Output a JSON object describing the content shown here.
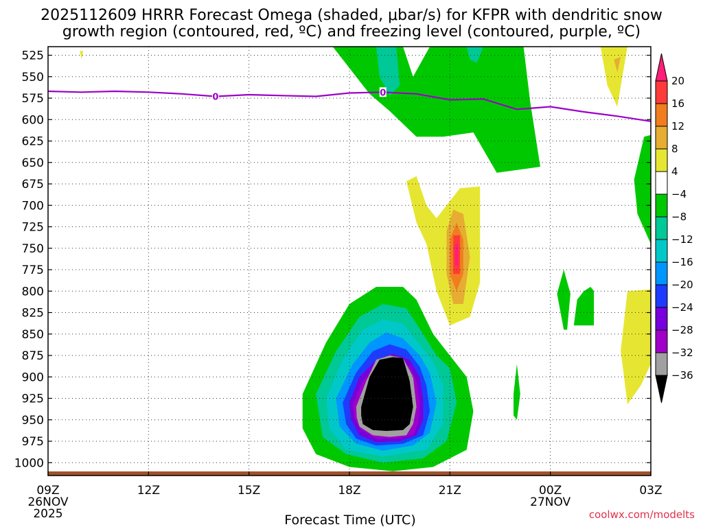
{
  "chart_data": {
    "type": "contour",
    "title_line1": "2025112609 HRRR Forecast Omega (shaded, μbar/s) for KFPR with dendritic snow",
    "title_line2": "growth region (contoured, red, ºC) and freezing level (contoured, purple, ºC)",
    "xlabel": "Forecast Time (UTC)",
    "credit": "coolwx.com/modelts",
    "xlim": [
      0,
      18
    ],
    "ylim": [
      515,
      1015
    ],
    "x_ticks": [
      {
        "x": 0,
        "label": "09Z",
        "sub1": "26NOV",
        "sub2": "2025"
      },
      {
        "x": 3,
        "label": "12Z",
        "sub1": "",
        "sub2": ""
      },
      {
        "x": 6,
        "label": "15Z",
        "sub1": "",
        "sub2": ""
      },
      {
        "x": 9,
        "label": "18Z",
        "sub1": "",
        "sub2": ""
      },
      {
        "x": 12,
        "label": "21Z",
        "sub1": "",
        "sub2": ""
      },
      {
        "x": 15,
        "label": "00Z",
        "sub1": "27NOV",
        "sub2": ""
      },
      {
        "x": 18,
        "label": "03Z",
        "sub1": "",
        "sub2": ""
      }
    ],
    "y_ticks": [
      525,
      550,
      575,
      600,
      625,
      650,
      675,
      700,
      725,
      750,
      775,
      800,
      825,
      850,
      875,
      900,
      925,
      950,
      975,
      1000
    ],
    "colorbar": {
      "levels": [
        {
          "value": 20,
          "label": "20",
          "color": "#ff1e78"
        },
        {
          "value": 16,
          "label": "16",
          "color": "#ff3a3a"
        },
        {
          "value": 12,
          "label": "12",
          "color": "#f07d1e"
        },
        {
          "value": 8,
          "label": "8",
          "color": "#e6ad32"
        },
        {
          "value": 4,
          "label": "4",
          "color": "#e6e632"
        },
        {
          "value": -4,
          "label": "−4",
          "color": "#ffffff"
        },
        {
          "value": -8,
          "label": "−8",
          "color": "#00c800"
        },
        {
          "value": -12,
          "label": "−12",
          "color": "#00c896"
        },
        {
          "value": -16,
          "label": "−16",
          "color": "#00c8c8"
        },
        {
          "value": -20,
          "label": "−20",
          "color": "#0096ff"
        },
        {
          "value": -24,
          "label": "−24",
          "color": "#1e3cff"
        },
        {
          "value": -28,
          "label": "−28",
          "color": "#7800dc"
        },
        {
          "value": -32,
          "label": "−32",
          "color": "#a000c8"
        },
        {
          "value": -36,
          "label": "−36",
          "color": "#a0a0a0"
        }
      ],
      "below_color": "#000000",
      "above_color": "#ff1e78"
    },
    "freezing_level": {
      "label": "0",
      "color": "#9b00c8",
      "points": [
        [
          0,
          567
        ],
        [
          1,
          568
        ],
        [
          2,
          567
        ],
        [
          3,
          568
        ],
        [
          4,
          570
        ],
        [
          5,
          573
        ],
        [
          6,
          571
        ],
        [
          7,
          572
        ],
        [
          8,
          573
        ],
        [
          9,
          569
        ],
        [
          10,
          568
        ],
        [
          11,
          570
        ],
        [
          12,
          577
        ],
        [
          13,
          576
        ],
        [
          14,
          588
        ],
        [
          15,
          585
        ],
        [
          16,
          591
        ],
        [
          17,
          596
        ],
        [
          18,
          602
        ]
      ],
      "label_x": [
        5,
        10
      ]
    },
    "regions": [
      {
        "color": "#00c800",
        "points": [
          [
            8.5,
            515
          ],
          [
            10.6,
            515
          ],
          [
            10.9,
            550
          ],
          [
            11.4,
            515
          ],
          [
            14.2,
            515
          ],
          [
            14.4,
            580
          ],
          [
            14.7,
            655
          ],
          [
            13.4,
            662
          ],
          [
            12.7,
            615
          ],
          [
            11.8,
            620
          ],
          [
            11.0,
            620
          ],
          [
            10.2,
            590
          ],
          [
            9.6,
            570
          ],
          [
            9.0,
            540
          ]
        ]
      },
      {
        "color": "#00c896",
        "points": [
          [
            9.8,
            515
          ],
          [
            10.4,
            515
          ],
          [
            10.5,
            560
          ],
          [
            10.2,
            572
          ],
          [
            9.9,
            550
          ]
        ]
      },
      {
        "color": "#00c896",
        "points": [
          [
            12.5,
            515
          ],
          [
            13.0,
            515
          ],
          [
            12.8,
            534
          ],
          [
            12.6,
            530
          ]
        ]
      },
      {
        "color": "#e6e632",
        "points": [
          [
            16.5,
            515
          ],
          [
            17.3,
            515
          ],
          [
            17.0,
            585
          ],
          [
            16.7,
            560
          ]
        ]
      },
      {
        "color": "#e6ad32",
        "points": [
          [
            16.9,
            530
          ],
          [
            17.1,
            527
          ],
          [
            17.0,
            545
          ]
        ]
      },
      {
        "color": "#00c800",
        "points": [
          [
            17.8,
            620
          ],
          [
            18.0,
            618
          ],
          [
            18.0,
            745
          ],
          [
            17.6,
            710
          ],
          [
            17.5,
            670
          ]
        ]
      },
      {
        "color": "#e6e632",
        "points": [
          [
            10.7,
            672
          ],
          [
            11.0,
            666
          ],
          [
            11.3,
            700
          ],
          [
            11.6,
            715
          ],
          [
            12.3,
            680
          ],
          [
            12.9,
            678
          ],
          [
            12.9,
            790
          ],
          [
            12.6,
            830
          ],
          [
            12.0,
            840
          ],
          [
            11.6,
            800
          ],
          [
            11.3,
            745
          ],
          [
            11.0,
            720
          ]
        ]
      },
      {
        "color": "#e6ad32",
        "points": [
          [
            11.9,
            730
          ],
          [
            12.1,
            705
          ],
          [
            12.4,
            710
          ],
          [
            12.6,
            760
          ],
          [
            12.4,
            815
          ],
          [
            12.1,
            815
          ],
          [
            11.9,
            780
          ]
        ]
      },
      {
        "color": "#f07d1e",
        "points": [
          [
            12.0,
            740
          ],
          [
            12.2,
            720
          ],
          [
            12.4,
            740
          ],
          [
            12.4,
            780
          ],
          [
            12.2,
            800
          ],
          [
            12.0,
            780
          ]
        ]
      },
      {
        "color": "#ff3a3a",
        "points": [
          [
            12.1,
            735
          ],
          [
            12.3,
            735
          ],
          [
            12.3,
            780
          ],
          [
            12.1,
            780
          ]
        ]
      },
      {
        "color": "#ff1e78",
        "points": [
          [
            12.15,
            745
          ],
          [
            12.25,
            745
          ],
          [
            12.25,
            770
          ],
          [
            12.15,
            770
          ]
        ]
      },
      {
        "color": "#00c800",
        "points": [
          [
            16.0,
            800
          ],
          [
            16.2,
            795
          ],
          [
            16.3,
            800
          ],
          [
            16.3,
            840
          ],
          [
            15.7,
            840
          ],
          [
            15.8,
            810
          ]
        ]
      },
      {
        "color": "#00c800",
        "points": [
          [
            15.2,
            803
          ],
          [
            15.4,
            775
          ],
          [
            15.6,
            803
          ],
          [
            15.5,
            845
          ],
          [
            15.4,
            845
          ]
        ]
      },
      {
        "color": "#00c800",
        "points": [
          [
            13.9,
            920
          ],
          [
            14.0,
            885
          ],
          [
            14.1,
            920
          ],
          [
            14.0,
            950
          ],
          [
            13.9,
            945
          ]
        ]
      },
      {
        "color": "#e6e632",
        "points": [
          [
            17.3,
            800
          ],
          [
            18.0,
            798
          ],
          [
            18.0,
            885
          ],
          [
            17.7,
            910
          ],
          [
            17.3,
            932
          ],
          [
            17.2,
            900
          ],
          [
            17.1,
            870
          ]
        ]
      },
      {
        "color": "#00c800",
        "points": [
          [
            7.6,
            920
          ],
          [
            8.3,
            860
          ],
          [
            9.0,
            815
          ],
          [
            9.8,
            795
          ],
          [
            10.6,
            795
          ],
          [
            11.0,
            810
          ],
          [
            11.5,
            850
          ],
          [
            12.1,
            880
          ],
          [
            12.5,
            900
          ],
          [
            12.7,
            940
          ],
          [
            12.5,
            985
          ],
          [
            11.5,
            1005
          ],
          [
            10.3,
            1010
          ],
          [
            9.0,
            1005
          ],
          [
            8.0,
            990
          ],
          [
            7.6,
            960
          ]
        ]
      },
      {
        "color": "#00c896",
        "points": [
          [
            8.0,
            920
          ],
          [
            8.6,
            870
          ],
          [
            9.3,
            830
          ],
          [
            10.0,
            815
          ],
          [
            10.7,
            820
          ],
          [
            11.2,
            850
          ],
          [
            11.6,
            875
          ],
          [
            12.0,
            890
          ],
          [
            12.2,
            930
          ],
          [
            11.9,
            975
          ],
          [
            11.2,
            995
          ],
          [
            10.0,
            1000
          ],
          [
            8.9,
            990
          ],
          [
            8.2,
            970
          ]
        ]
      },
      {
        "color": "#00c8c8",
        "points": [
          [
            8.3,
            925
          ],
          [
            8.8,
            880
          ],
          [
            9.4,
            845
          ],
          [
            10.0,
            833
          ],
          [
            10.6,
            838
          ],
          [
            11.1,
            862
          ],
          [
            11.5,
            882
          ],
          [
            11.8,
            910
          ],
          [
            11.8,
            955
          ],
          [
            11.3,
            985
          ],
          [
            10.0,
            993
          ],
          [
            8.9,
            985
          ],
          [
            8.4,
            960
          ]
        ]
      },
      {
        "color": "#0096ff",
        "points": [
          [
            8.6,
            925
          ],
          [
            9.1,
            885
          ],
          [
            9.6,
            860
          ],
          [
            10.1,
            848
          ],
          [
            10.6,
            855
          ],
          [
            11.1,
            875
          ],
          [
            11.4,
            895
          ],
          [
            11.6,
            930
          ],
          [
            11.4,
            965
          ],
          [
            10.9,
            980
          ],
          [
            10.0,
            986
          ],
          [
            9.2,
            978
          ],
          [
            8.7,
            958
          ]
        ]
      },
      {
        "color": "#1e3cff",
        "points": [
          [
            8.8,
            930
          ],
          [
            9.2,
            895
          ],
          [
            9.7,
            870
          ],
          [
            10.2,
            862
          ],
          [
            10.7,
            868
          ],
          [
            11.1,
            888
          ],
          [
            11.3,
            910
          ],
          [
            11.4,
            940
          ],
          [
            11.2,
            968
          ],
          [
            10.6,
            978
          ],
          [
            9.8,
            980
          ],
          [
            9.2,
            972
          ],
          [
            8.9,
            955
          ]
        ]
      },
      {
        "color": "#7800dc",
        "points": [
          [
            9.0,
            930
          ],
          [
            9.3,
            900
          ],
          [
            9.8,
            880
          ],
          [
            10.3,
            873
          ],
          [
            10.8,
            880
          ],
          [
            11.1,
            900
          ],
          [
            11.2,
            925
          ],
          [
            11.2,
            950
          ],
          [
            11.0,
            968
          ],
          [
            10.5,
            975
          ],
          [
            9.8,
            976
          ],
          [
            9.3,
            968
          ],
          [
            9.05,
            950
          ]
        ]
      },
      {
        "color": "#a000c8",
        "points": [
          [
            9.1,
            932
          ],
          [
            9.4,
            905
          ],
          [
            9.8,
            887
          ],
          [
            10.3,
            880
          ],
          [
            10.8,
            888
          ],
          [
            11.0,
            905
          ],
          [
            11.1,
            930
          ],
          [
            11.05,
            955
          ],
          [
            10.9,
            968
          ],
          [
            10.4,
            972
          ],
          [
            9.8,
            972
          ],
          [
            9.35,
            962
          ],
          [
            9.15,
            948
          ]
        ]
      },
      {
        "color": "#a0a0a0",
        "points": [
          [
            9.2,
            935
          ],
          [
            9.5,
            905
          ],
          [
            9.8,
            880
          ],
          [
            10.2,
            875
          ],
          [
            10.6,
            878
          ],
          [
            10.9,
            900
          ],
          [
            11.0,
            935
          ],
          [
            10.9,
            955
          ],
          [
            10.7,
            968
          ],
          [
            10.2,
            970
          ],
          [
            9.7,
            968
          ],
          [
            9.3,
            958
          ],
          [
            9.22,
            948
          ]
        ]
      },
      {
        "color": "#000000",
        "points": [
          [
            9.35,
            935
          ],
          [
            9.6,
            900
          ],
          [
            9.9,
            880
          ],
          [
            10.3,
            877
          ],
          [
            10.6,
            878
          ],
          [
            10.8,
            905
          ],
          [
            10.9,
            935
          ],
          [
            10.8,
            955
          ],
          [
            10.6,
            962
          ],
          [
            10.1,
            963
          ],
          [
            9.7,
            962
          ],
          [
            9.4,
            955
          ],
          [
            9.35,
            945
          ]
        ]
      },
      {
        "color": "#e6e632",
        "points": [
          [
            0.95,
            520
          ],
          [
            1.05,
            520
          ],
          [
            1.0,
            530
          ]
        ]
      }
    ]
  }
}
